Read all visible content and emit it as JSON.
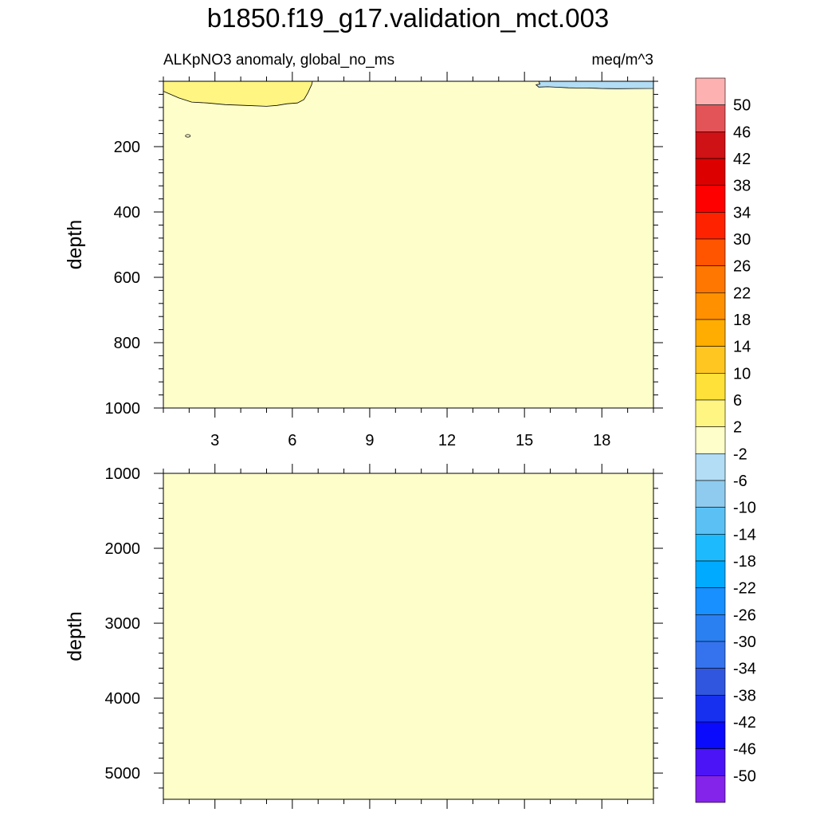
{
  "title": "b1850.f19_g17.validation_mct.003",
  "subtitle_left": "ALKpNO3 anomaly, global_no_ms",
  "subtitle_right": "meq/m^3",
  "chart_data": [
    {
      "type": "heatmap",
      "panel": "upper",
      "ylabel": "depth",
      "xlabel": "",
      "xlim": [
        1,
        20
      ],
      "ylim": [
        1000,
        0
      ],
      "x_ticks": [
        3,
        6,
        9,
        12,
        15,
        18
      ],
      "y_ticks": [
        200,
        400,
        600,
        800,
        1000
      ],
      "background_class": "-2 to 2",
      "regions": [
        {
          "class": "2 to 6",
          "x": [
            1,
            6.8
          ],
          "depth": [
            0,
            75
          ],
          "description": "shallow positive anomaly"
        },
        {
          "class": "-6 to -2",
          "x": [
            15.5,
            20
          ],
          "depth": [
            0,
            60
          ],
          "description": "shallow negative anomaly"
        }
      ]
    },
    {
      "type": "heatmap",
      "panel": "lower",
      "ylabel": "depth",
      "xlabel": "",
      "xlim": [
        1,
        20
      ],
      "ylim": [
        5350,
        1000
      ],
      "x_ticks": [
        3,
        6,
        9,
        12,
        15,
        18
      ],
      "y_ticks": [
        1000,
        2000,
        3000,
        4000,
        5000
      ],
      "background_class": "-2 to 2",
      "regions": []
    }
  ],
  "colorbar": {
    "levels": [
      "50",
      "46",
      "42",
      "38",
      "34",
      "30",
      "26",
      "22",
      "18",
      "14",
      "10",
      "6",
      "2",
      "-2",
      "-6",
      "-10",
      "-14",
      "-18",
      "-22",
      "-26",
      "-30",
      "-34",
      "-38",
      "-42",
      "-46",
      "-50"
    ],
    "colors": [
      "#fdb1b1",
      "#e25457",
      "#cf1215",
      "#dd0000",
      "#ff0000",
      "#ff2200",
      "#ff5500",
      "#ff7700",
      "#ff9000",
      "#ffad00",
      "#ffc622",
      "#ffe13a",
      "#fef583",
      "#fefecb",
      "#b2ddf4",
      "#8ecbee",
      "#5bc1f4",
      "#1dbbfd",
      "#00aaff",
      "#1890ff",
      "#2a7ff1",
      "#3573ee",
      "#3056df",
      "#1730f0",
      "#0a0afd",
      "#4b14f7",
      "#8423ea"
    ]
  }
}
